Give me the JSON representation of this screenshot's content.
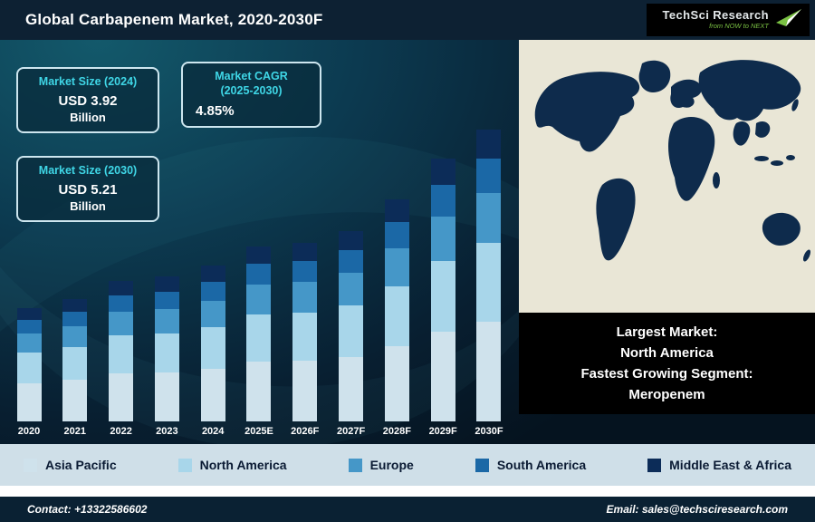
{
  "header": {
    "title": "Global Carbapenem Market, 2020-2030F",
    "logo": {
      "brand": "TechSci Research",
      "tagline": "from NOW to NEXT"
    }
  },
  "stats": {
    "size2024": {
      "label": "Market Size (2024)",
      "value": "USD 3.92",
      "unit": "Billion"
    },
    "cagr": {
      "label": "Market CAGR",
      "sublabel": "(2025-2030)",
      "value": "4.85%"
    },
    "size2030": {
      "label": "Market Size (2030)",
      "value": "USD 5.21",
      "unit": "Billion"
    }
  },
  "callout": {
    "line1": "Largest Market:",
    "line2": "North America",
    "line3": "Fastest Growing Segment:",
    "line4": "Meropenem"
  },
  "footer": {
    "contact": "Contact: +13322586602",
    "email": "Email: sales@techsciresearch.com"
  },
  "colors": {
    "header_bg": "#0d2133",
    "accent_cyan": "#3fd6e6",
    "legend_bg": "#cfdfe8",
    "footer_bg": "#0a2133",
    "callout_bg": "#000000",
    "map_land": "#0e2b4c",
    "map_ocean": "#e9e6d6",
    "logo_green": "#7ac143"
  },
  "chart_data": {
    "type": "bar",
    "stacked": true,
    "title": "Global Carbapenem Market, 2020-2030F",
    "xlabel": "",
    "ylabel": "",
    "axes_shown": false,
    "legend_position": "bottom",
    "note": "No value axis is shown; segment values are relative heights estimated from the figure. Labeled totals: 2024 = USD 3.92 Billion, 2030 = USD 5.21 Billion, CAGR 2025-2030 = 4.85%.",
    "categories": [
      "2020",
      "2021",
      "2022",
      "2023",
      "2024",
      "2025E",
      "2026F",
      "2027F",
      "2028F",
      "2029F",
      "2030F"
    ],
    "series": [
      {
        "name": "Asia Pacific",
        "color": "#cfe2ec",
        "values": [
          42,
          46,
          53,
          54,
          58,
          66,
          67,
          71,
          83,
          99,
          110
        ]
      },
      {
        "name": "North America",
        "color": "#a8d6ea",
        "values": [
          34,
          36,
          42,
          43,
          46,
          52,
          53,
          57,
          66,
          78,
          87
        ]
      },
      {
        "name": "Europe",
        "color": "#4597c8",
        "values": [
          21,
          23,
          26,
          27,
          29,
          33,
          34,
          36,
          42,
          49,
          55
        ]
      },
      {
        "name": "South America",
        "color": "#1b68a6",
        "values": [
          15,
          16,
          18,
          19,
          21,
          23,
          23,
          25,
          29,
          35,
          38
        ]
      },
      {
        "name": "Middle East & Africa",
        "color": "#0c2c58",
        "values": [
          13,
          14,
          16,
          17,
          18,
          19,
          20,
          21,
          25,
          29,
          32
        ]
      }
    ]
  }
}
